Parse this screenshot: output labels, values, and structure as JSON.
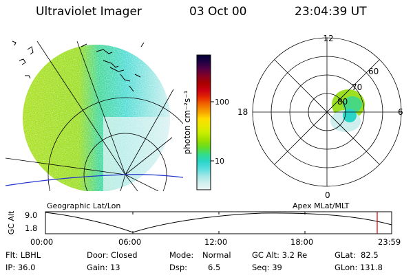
{
  "header": {
    "instrument": "Ultraviolet Imager",
    "date": "03 Oct 00",
    "time": "23:04:39 UT"
  },
  "colorbar": {
    "unit_label": "photon cm⁻²s⁻¹",
    "tick_labels": [
      "100",
      "10"
    ],
    "scale": "log",
    "colors": [
      "#000033",
      "#220044",
      "#550044",
      "#880022",
      "#aa0000",
      "#cc0011",
      "#e52a00",
      "#f26a00",
      "#f6a000",
      "#ffdd00",
      "#e8e800",
      "#c8ee00",
      "#9de000",
      "#66dd22",
      "#33dd88",
      "#2ad5c8",
      "#55dddd",
      "#9fe6e6",
      "#cfeeee",
      "#eaf6f6"
    ]
  },
  "map_left": {
    "caption": "Geographic Lat/Lon"
  },
  "map_right": {
    "caption": "Apex MLat/MLT",
    "mlt_labels": {
      "top": "12",
      "left": "18",
      "right": "6",
      "bottom": "0"
    },
    "mlat_labels": [
      "60",
      "70",
      "80"
    ]
  },
  "altitude_plot": {
    "ylabel": "GC Alt",
    "y_ticks": [
      "9.0",
      "1.8"
    ],
    "x_ticks": [
      "00:00",
      "06:00",
      "12:00",
      "18:00",
      "23:59"
    ],
    "marker_color": "#cc0000"
  },
  "footer": {
    "filter": "Flt: LBHL",
    "ip": "IP: 36.0",
    "door": "Door: Closed",
    "gain": "Gain: 13",
    "mode_label": "Mode:",
    "mode_value": "Normal",
    "dsp_label": "Dsp:",
    "dsp_value": "6.5",
    "gc_alt": "GC Alt: 3.2 Re",
    "seq": "Seq: 39",
    "glat": "GLat:  82.5",
    "glon": "GLon: 131.8"
  }
}
